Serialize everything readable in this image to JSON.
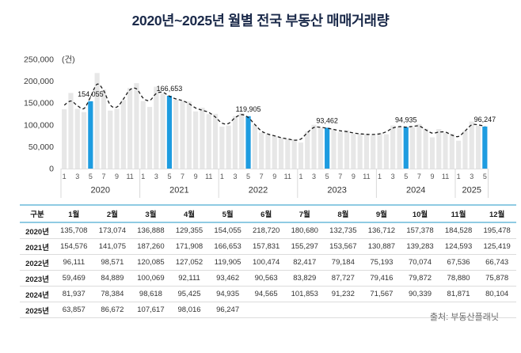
{
  "title": "2020년~2025년 월별 전국 부동산 매매거래량",
  "source": "출처: 부동산플래닛",
  "colors": {
    "title_text": "#1b2a4a",
    "bar_default": "#e7e7e7",
    "bar_highlight": "#1e9ce0",
    "trend_line": "#1a1a1a",
    "axis_text": "#3a3a3a",
    "month_tick_text": "#555555",
    "table_header_border": "#8fcbe3",
    "source_text": "#6b6b6b"
  },
  "chart_data": {
    "type": "bar",
    "title": "2020년~2025년 월별 전국 부동산 매매거래량",
    "unit_label": "(건)",
    "xlabel": "",
    "ylabel": "",
    "ylim": [
      0,
      250000
    ],
    "yticks": [
      0,
      50000,
      100000,
      150000,
      200000,
      250000
    ],
    "grid": "off",
    "legend": "none",
    "overlay": "dashed smoothed trend line across all months",
    "month_tick_pattern": [
      1,
      3,
      5,
      7,
      9,
      11
    ],
    "years": [
      "2020",
      "2021",
      "2022",
      "2023",
      "2024",
      "2025"
    ],
    "highlight_month": 5,
    "highlight_labels": [
      "154,055",
      "166,653",
      "119,905",
      "93,462",
      "94,935",
      "96,247"
    ],
    "series": [
      {
        "name": "2020",
        "values": [
          135708,
          173074,
          136888,
          129355,
          154055,
          218720,
          180680,
          132735,
          136712,
          157378,
          184528,
          195478
        ]
      },
      {
        "name": "2021",
        "values": [
          154576,
          141075,
          187260,
          171908,
          166653,
          157831,
          155297,
          153567,
          130887,
          139283,
          124593,
          125419
        ]
      },
      {
        "name": "2022",
        "values": [
          96111,
          98571,
          120085,
          127052,
          119905,
          100474,
          82417,
          79184,
          75193,
          70074,
          67536,
          66743
        ]
      },
      {
        "name": "2023",
        "values": [
          59469,
          84889,
          100069,
          92111,
          93462,
          90563,
          83829,
          87727,
          79416,
          79872,
          78880,
          75878
        ]
      },
      {
        "name": "2024",
        "values": [
          81937,
          78384,
          98618,
          95425,
          94935,
          94565,
          101853,
          91232,
          71567,
          90339,
          81871,
          80104
        ]
      },
      {
        "name": "2025",
        "values": [
          63857,
          86672,
          107617,
          98016,
          96247
        ]
      }
    ]
  },
  "table": {
    "headers": [
      "구분",
      "1월",
      "2월",
      "3월",
      "4월",
      "5월",
      "6월",
      "7월",
      "8월",
      "9월",
      "10월",
      "11월",
      "12월"
    ],
    "rows": [
      {
        "label": "2020년",
        "values": [
          "135,708",
          "173,074",
          "136,888",
          "129,355",
          "154,055",
          "218,720",
          "180,680",
          "132,735",
          "136,712",
          "157,378",
          "184,528",
          "195,478"
        ]
      },
      {
        "label": "2021년",
        "values": [
          "154,576",
          "141,075",
          "187,260",
          "171,908",
          "166,653",
          "157,831",
          "155,297",
          "153,567",
          "130,887",
          "139,283",
          "124,593",
          "125,419"
        ]
      },
      {
        "label": "2022년",
        "values": [
          "96,111",
          "98,571",
          "120,085",
          "127,052",
          "119,905",
          "100,474",
          "82,417",
          "79,184",
          "75,193",
          "70,074",
          "67,536",
          "66,743"
        ]
      },
      {
        "label": "2023년",
        "values": [
          "59,469",
          "84,889",
          "100,069",
          "92,111",
          "93,462",
          "90,563",
          "83,829",
          "87,727",
          "79,416",
          "79,872",
          "78,880",
          "75,878"
        ]
      },
      {
        "label": "2024년",
        "values": [
          "81,937",
          "78,384",
          "98,618",
          "95,425",
          "94,935",
          "94,565",
          "101,853",
          "91,232",
          "71,567",
          "90,339",
          "81,871",
          "80,104"
        ]
      },
      {
        "label": "2025년",
        "values": [
          "63,857",
          "86,672",
          "107,617",
          "98,016",
          "96,247"
        ]
      }
    ]
  }
}
